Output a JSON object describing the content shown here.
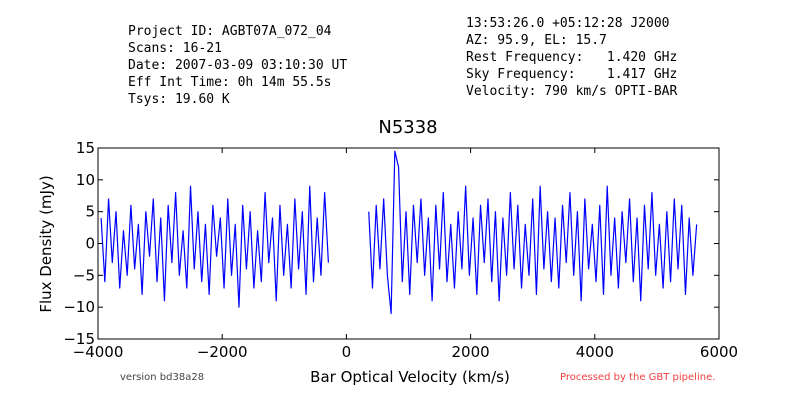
{
  "chart_data": {
    "type": "line",
    "title": "N5338",
    "header_left": [
      "Project ID: AGBT07A_072_04",
      "Scans: 16-21",
      "Date: 2007-03-09 03:10:30 UT",
      "Eff Int Time: 0h 14m 55.5s",
      "Tsys: 19.60 K"
    ],
    "header_right": [
      "13:53:26.0 +05:12:28 J2000",
      "AZ: 95.9, EL: 15.7",
      "Rest Frequency:   1.420 GHz",
      "Sky Frequency:    1.417 GHz",
      "Velocity: 790 km/s OPTI-BAR"
    ],
    "footer_left": "version bd38a28",
    "footer_right": "Processed by the GBT pipeline.",
    "x_label": "Bar Optical Velocity (km/s)",
    "y_label": "Flux Density (mJy)",
    "color": "#0000ff",
    "xlim": [
      -4000,
      6000
    ],
    "ylim": [
      -15,
      15
    ],
    "xticks": [
      {
        "value": -4000,
        "label": "−4000"
      },
      {
        "value": -2000,
        "label": "−2000"
      },
      0,
      2000,
      4000,
      6000
    ],
    "yticks": [
      {
        "value": -15,
        "label": "−15"
      },
      {
        "value": -10,
        "label": "−10"
      },
      {
        "value": -5,
        "label": "−5"
      },
      0,
      5,
      10,
      15
    ],
    "x": [
      -3950,
      -3890,
      -3830,
      -3770,
      -3710,
      -3650,
      -3590,
      -3530,
      -3470,
      -3410,
      -3350,
      -3290,
      -3230,
      -3170,
      -3110,
      -3050,
      -2990,
      -2930,
      -2870,
      -2810,
      -2750,
      -2690,
      -2630,
      -2570,
      -2510,
      -2450,
      -2390,
      -2330,
      -2270,
      -2210,
      -2150,
      -2090,
      -2030,
      -1970,
      -1910,
      -1850,
      -1790,
      -1730,
      -1670,
      -1610,
      -1550,
      -1490,
      -1430,
      -1370,
      -1310,
      -1250,
      -1190,
      -1130,
      -1070,
      -1010,
      -950,
      -890,
      -830,
      -770,
      -710,
      -650,
      -590,
      -530,
      -470,
      -410,
      -350,
      -290,
      0,
      360,
      420,
      480,
      540,
      600,
      660,
      720,
      780,
      840,
      900,
      960,
      1020,
      1080,
      1140,
      1200,
      1260,
      1320,
      1380,
      1440,
      1500,
      1560,
      1620,
      1680,
      1740,
      1800,
      1860,
      1920,
      1980,
      2040,
      2100,
      2160,
      2220,
      2280,
      2340,
      2400,
      2460,
      2520,
      2580,
      2640,
      2700,
      2760,
      2820,
      2880,
      2940,
      3000,
      3060,
      3120,
      3180,
      3240,
      3300,
      3360,
      3420,
      3480,
      3540,
      3600,
      3660,
      3720,
      3780,
      3840,
      3900,
      3960,
      4020,
      4080,
      4140,
      4200,
      4260,
      4320,
      4380,
      4440,
      4500,
      4560,
      4620,
      4680,
      4740,
      4800,
      4860,
      4920,
      4980,
      5040,
      5100,
      5160,
      5220,
      5280,
      5340,
      5400,
      5460,
      5520,
      5580,
      5640
    ],
    "values": [
      4,
      -6,
      7,
      -3,
      5,
      -7,
      2,
      -5,
      6,
      -4,
      3,
      -8,
      5,
      -2,
      7,
      -6,
      4,
      -9,
      6,
      -3,
      8,
      -5,
      2,
      -7,
      9,
      -4,
      5,
      -6,
      3,
      -8,
      6,
      -2,
      4,
      -7,
      7,
      -5,
      3,
      -10,
      6,
      -4,
      5,
      -7,
      2,
      -6,
      8,
      -3,
      4,
      -9,
      6,
      -5,
      3,
      -7,
      7,
      -4,
      5,
      -8,
      9,
      -6,
      4,
      -5,
      8,
      -3,
      null,
      5,
      -7,
      6,
      -4,
      7,
      -5,
      -11,
      14.5,
      12,
      -6,
      5,
      -8,
      6,
      -3,
      7,
      -5,
      4,
      -9,
      6,
      -4,
      8,
      -6,
      3,
      -7,
      5,
      -4,
      9,
      -5,
      4,
      -8,
      6,
      -3,
      7,
      -6,
      5,
      -9,
      4,
      -5,
      8,
      -4,
      6,
      -7,
      3,
      -5,
      7,
      -8,
      9,
      -4,
      5,
      -6,
      4,
      -7,
      6,
      -3,
      8,
      -5,
      5,
      -9,
      7,
      -4,
      3,
      -6,
      6,
      -8,
      9,
      -5,
      4,
      -7,
      5,
      -3,
      7,
      -6,
      4,
      -9,
      6,
      -4,
      8,
      -5,
      3,
      -7,
      5,
      -6,
      7,
      -4,
      6,
      -8,
      4,
      -5,
      3
    ]
  }
}
